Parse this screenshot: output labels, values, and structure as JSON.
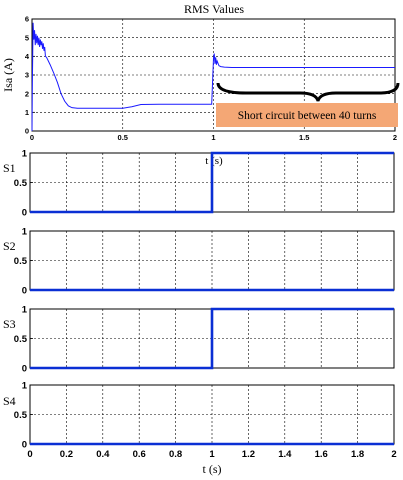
{
  "chart_data": [
    {
      "type": "line",
      "title": "RMS Values",
      "ylabel": "Isa (A)",
      "xlabel": "t (s)",
      "xlim": [
        0,
        2
      ],
      "ylim": [
        0,
        6
      ],
      "xticks": [
        "0",
        "0.5",
        "1",
        "1.5",
        "2"
      ],
      "yticks": [
        "0",
        "1",
        "2",
        "3",
        "4",
        "5",
        "6"
      ],
      "grid": true,
      "annotation": "Short circuit between 40 turns",
      "color": "#1a1aff",
      "series": [
        {
          "x": [
            0,
            0.002,
            0.006,
            0.01,
            0.014,
            0.018,
            0.022,
            0.026,
            0.03,
            0.034,
            0.038,
            0.042,
            0.046,
            0.05,
            0.054,
            0.058,
            0.062,
            0.066,
            0.07,
            0.074,
            0.08,
            0.09,
            0.1,
            0.12,
            0.14,
            0.16,
            0.18,
            0.2,
            0.22,
            0.25,
            0.3,
            0.4,
            0.5,
            0.55,
            0.6,
            0.7,
            0.8,
            0.9,
            0.99,
            1.0,
            1.004,
            1.008,
            1.012,
            1.016,
            1.02,
            1.03,
            1.04,
            1.06,
            1.1,
            1.2,
            1.4,
            1.6,
            1.8,
            2.0
          ],
          "y": [
            0,
            2.5,
            5.8,
            4.9,
            5.4,
            4.6,
            5.2,
            4.7,
            5.1,
            4.6,
            5.0,
            4.5,
            4.9,
            4.6,
            4.8,
            4.4,
            4.7,
            4.3,
            4.5,
            4.0,
            3.95,
            3.75,
            3.55,
            3.1,
            2.6,
            2.0,
            1.6,
            1.35,
            1.25,
            1.22,
            1.22,
            1.22,
            1.22,
            1.3,
            1.42,
            1.43,
            1.43,
            1.43,
            1.43,
            3.9,
            4.15,
            3.6,
            3.95,
            3.55,
            3.75,
            3.5,
            3.45,
            3.42,
            3.4,
            3.4,
            3.4,
            3.4,
            3.4,
            3.4
          ]
        }
      ]
    },
    {
      "type": "line",
      "ylabel": "S1",
      "xlim": [
        0,
        2
      ],
      "ylim": [
        0,
        1
      ],
      "yticks": [
        "0",
        "0.5",
        "1"
      ],
      "grid": true,
      "series": [
        {
          "x": [
            0,
            1,
            1,
            2
          ],
          "y": [
            0,
            0,
            1,
            1
          ]
        }
      ]
    },
    {
      "type": "line",
      "ylabel": "S2",
      "xlim": [
        0,
        2
      ],
      "ylim": [
        0,
        1
      ],
      "yticks": [
        "0",
        "0.5",
        "1"
      ],
      "grid": true,
      "series": [
        {
          "x": [
            0,
            2
          ],
          "y": [
            0,
            0
          ]
        }
      ]
    },
    {
      "type": "line",
      "ylabel": "S3",
      "xlim": [
        0,
        2
      ],
      "ylim": [
        0,
        1
      ],
      "yticks": [
        "0",
        "0.5",
        "1"
      ],
      "grid": true,
      "series": [
        {
          "x": [
            0,
            1,
            1,
            2
          ],
          "y": [
            0,
            0,
            1,
            1
          ]
        }
      ]
    },
    {
      "type": "line",
      "ylabel": "S4",
      "xlabel": "t (s)",
      "xlim": [
        0,
        2
      ],
      "ylim": [
        0,
        1
      ],
      "xticks": [
        "0",
        "0.2",
        "0.4",
        "0.6",
        "0.8",
        "1",
        "1.2",
        "1.4",
        "1.6",
        "1.8",
        "2"
      ],
      "yticks": [
        "0",
        "0.5",
        "1"
      ],
      "grid": true,
      "series": [
        {
          "x": [
            0,
            2
          ],
          "y": [
            0,
            0
          ]
        }
      ]
    }
  ],
  "colors": {
    "line": "#1a1aff",
    "switch_line": "#0a2fd4",
    "annotation_box": "#f4a775"
  }
}
